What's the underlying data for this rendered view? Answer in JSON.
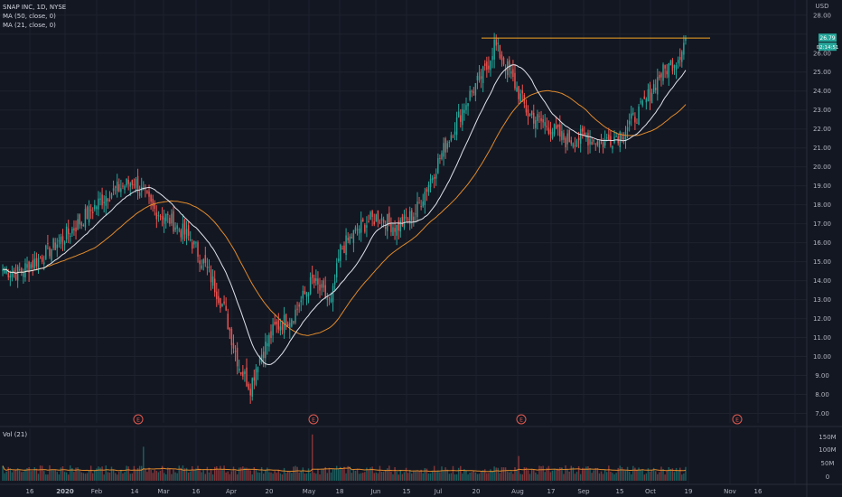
{
  "chart_data": {
    "type": "candlestick",
    "symbol_line": "SNAP INC, 1D, NYSE",
    "ma_labels": [
      "MA (50, close, 0)",
      "MA (21, close, 0)"
    ],
    "volume_label": "Vol (21)",
    "currency": "USD",
    "price_ticks": [
      7.0,
      8.0,
      9.0,
      10.0,
      11.0,
      12.0,
      13.0,
      14.0,
      15.0,
      16.0,
      17.0,
      18.0,
      19.0,
      20.0,
      21.0,
      22.0,
      23.0,
      24.0,
      25.0,
      26.0,
      28.0
    ],
    "ylim": [
      6.5,
      28.8
    ],
    "volume_ticks": [
      "150M",
      "100M",
      "50M",
      "0"
    ],
    "x_ticks": [
      "16",
      "2020",
      "Feb",
      "14",
      "Mar",
      "16",
      "Apr",
      "20",
      "May",
      "18",
      "Jun",
      "15",
      "Jul",
      "20",
      "Aug",
      "17",
      "Sep",
      "15",
      "Oct",
      "19",
      "Nov",
      "16"
    ],
    "last_price_label": "26.79",
    "second_price_label": "02:14:51",
    "resistance_level": 26.79,
    "earnings_marker": "E",
    "close_waypoints": [
      [
        0,
        14.6
      ],
      [
        8,
        14.4
      ],
      [
        20,
        15.2
      ],
      [
        35,
        16.5
      ],
      [
        55,
        18.5
      ],
      [
        70,
        19.3
      ],
      [
        80,
        17.8
      ],
      [
        88,
        17.3
      ],
      [
        100,
        16.2
      ],
      [
        110,
        14.4
      ],
      [
        118,
        12.5
      ],
      [
        126,
        9.5
      ],
      [
        132,
        8.4
      ],
      [
        136,
        9.8
      ],
      [
        145,
        11.5
      ],
      [
        155,
        12.2
      ],
      [
        165,
        14.0
      ],
      [
        175,
        12.8
      ],
      [
        180,
        15.6
      ],
      [
        190,
        16.8
      ],
      [
        200,
        17.4
      ],
      [
        210,
        16.8
      ],
      [
        220,
        17.6
      ],
      [
        230,
        19.8
      ],
      [
        240,
        22.0
      ],
      [
        250,
        24.0
      ],
      [
        258,
        25.2
      ],
      [
        262,
        26.5
      ],
      [
        270,
        25.0
      ],
      [
        280,
        22.8
      ],
      [
        290,
        22.2
      ],
      [
        300,
        21.4
      ],
      [
        310,
        21.6
      ],
      [
        320,
        21.3
      ],
      [
        330,
        21.8
      ],
      [
        340,
        23.0
      ],
      [
        350,
        24.8
      ],
      [
        360,
        25.8
      ],
      [
        364,
        26.79
      ]
    ]
  }
}
